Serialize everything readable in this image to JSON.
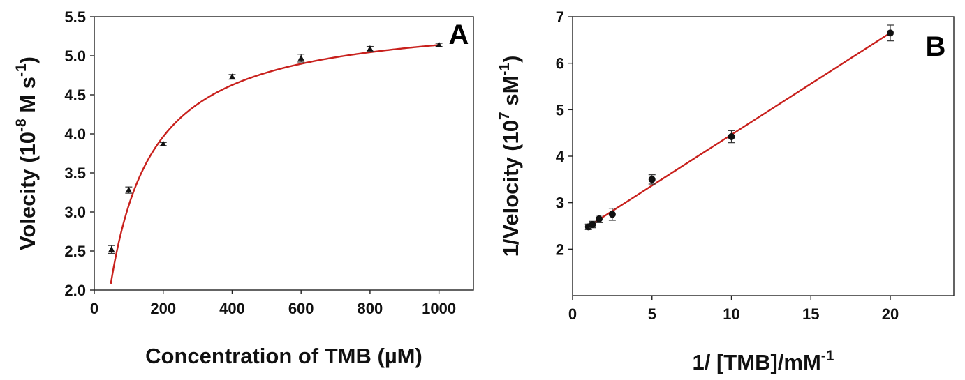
{
  "chart_data": [
    {
      "type": "scatter",
      "panel_label": "A",
      "xlabel": "Concentration of TMB (µM)",
      "ylabel_parts": [
        "Volecity (10",
        "-8",
        " M s",
        "-1",
        ")"
      ],
      "xlim": [
        0,
        1100
      ],
      "ylim": [
        2.0,
        5.5
      ],
      "xticks": [
        0,
        200,
        400,
        600,
        800,
        1000
      ],
      "yticks": [
        "2.0",
        "2.5",
        "3.0",
        "3.5",
        "4.0",
        "4.5",
        "5.0",
        "5.5"
      ],
      "marker": "triangle",
      "fit": {
        "type": "michaelis-menten",
        "color": "#c8201c"
      },
      "series": [
        {
          "x": [
            50,
            100,
            200,
            400,
            600,
            800,
            1000
          ],
          "y": [
            2.52,
            3.28,
            3.87,
            4.73,
            4.97,
            5.09,
            5.14
          ],
          "err": [
            0.05,
            0.04,
            0.02,
            0.03,
            0.05,
            0.03,
            0.02
          ]
        }
      ]
    },
    {
      "type": "scatter",
      "panel_label": "B",
      "xlabel_parts": [
        "1/ [TMB]/mM",
        "-1"
      ],
      "ylabel_parts": [
        "1/Velocity (10",
        "7",
        " sM",
        "-1",
        ")"
      ],
      "xlim": [
        0,
        24
      ],
      "ylim": [
        1,
        7
      ],
      "xticks": [
        0,
        5,
        10,
        15,
        20
      ],
      "yticks": [
        "2",
        "3",
        "4",
        "5",
        "6",
        "7"
      ],
      "marker": "circle",
      "fit": {
        "type": "linear",
        "color": "#c8201c"
      },
      "series": [
        {
          "x": [
            1,
            1.25,
            1.67,
            2.5,
            5,
            10,
            20
          ],
          "y": [
            2.48,
            2.53,
            2.65,
            2.75,
            3.5,
            4.42,
            6.65
          ],
          "err": [
            0.06,
            0.07,
            0.08,
            0.13,
            0.1,
            0.13,
            0.17
          ]
        }
      ]
    }
  ]
}
